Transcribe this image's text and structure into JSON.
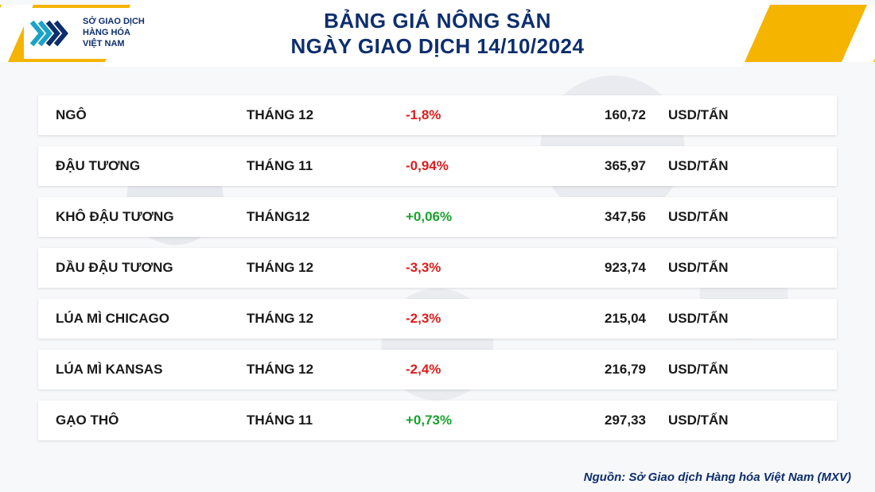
{
  "colors": {
    "accent_yellow": "#f5b400",
    "brand_navy": "#0d2e6d",
    "brand_cyan": "#1aa3c7",
    "row_bg": "#ffffff",
    "text": "#1a1a1a",
    "positive": "#17a32b",
    "negative": "#e21b1b"
  },
  "logo": {
    "line1": "SỞ GIAO DỊCH",
    "line2": "HÀNG HÓA",
    "line3": "VIỆT NAM"
  },
  "header": {
    "title_line1": "BẢNG GIÁ NÔNG SẢN",
    "title_line2": "NGÀY GIAO DỊCH 14/10/2024"
  },
  "table": {
    "rows": [
      {
        "name": "NGÔ",
        "month": "THÁNG 12",
        "change": "-1,8%",
        "change_dir": "neg",
        "price": "160,72",
        "unit": "USD/TẤN"
      },
      {
        "name": "ĐẬU TƯƠNG",
        "month": "THÁNG 11",
        "change": "-0,94%",
        "change_dir": "neg",
        "price": "365,97",
        "unit": "USD/TẤN"
      },
      {
        "name": "KHÔ ĐẬU TƯƠNG",
        "month": "THÁNG12",
        "change": "+0,06%",
        "change_dir": "pos",
        "price": "347,56",
        "unit": "USD/TẤN"
      },
      {
        "name": "DẦU ĐẬU TƯƠNG",
        "month": "THÁNG 12",
        "change": "-3,3%",
        "change_dir": "neg",
        "price": "923,74",
        "unit": "USD/TẤN"
      },
      {
        "name": "LÚA MÌ CHICAGO",
        "month": "THÁNG 12",
        "change": "-2,3%",
        "change_dir": "neg",
        "price": "215,04",
        "unit": "USD/TẤN"
      },
      {
        "name": "LÚA MÌ KANSAS",
        "month": "THÁNG 12",
        "change": "-2,4%",
        "change_dir": "neg",
        "price": "216,79",
        "unit": "USD/TẤN"
      },
      {
        "name": "GẠO THÔ",
        "month": "THÁNG 11",
        "change": "+0,73%",
        "change_dir": "pos",
        "price": "297,33",
        "unit": "USD/TẤN"
      }
    ]
  },
  "footer": {
    "source": "Nguồn: Sở Giao dịch Hàng hóa Việt Nam (MXV)"
  }
}
